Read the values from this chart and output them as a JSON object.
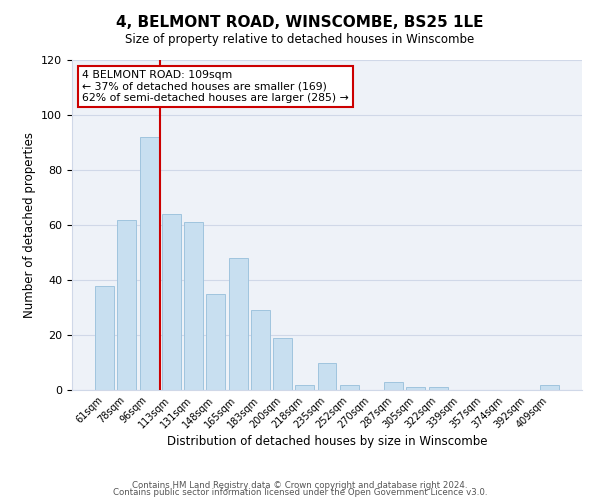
{
  "title": "4, BELMONT ROAD, WINSCOMBE, BS25 1LE",
  "subtitle": "Size of property relative to detached houses in Winscombe",
  "xlabel": "Distribution of detached houses by size in Winscombe",
  "ylabel": "Number of detached properties",
  "bar_labels": [
    "61sqm",
    "78sqm",
    "96sqm",
    "113sqm",
    "131sqm",
    "148sqm",
    "165sqm",
    "183sqm",
    "200sqm",
    "218sqm",
    "235sqm",
    "252sqm",
    "270sqm",
    "287sqm",
    "305sqm",
    "322sqm",
    "339sqm",
    "357sqm",
    "374sqm",
    "392sqm",
    "409sqm"
  ],
  "bar_heights": [
    38,
    62,
    92,
    64,
    61,
    35,
    48,
    29,
    19,
    2,
    10,
    2,
    0,
    3,
    1,
    1,
    0,
    0,
    0,
    0,
    2
  ],
  "bar_color": "#c8dff0",
  "bar_edge_color": "#a0c4de",
  "vline_x_index": 2.5,
  "vline_color": "#cc0000",
  "ylim": [
    0,
    120
  ],
  "yticks": [
    0,
    20,
    40,
    60,
    80,
    100,
    120
  ],
  "annotation_title": "4 BELMONT ROAD: 109sqm",
  "annotation_line1": "← 37% of detached houses are smaller (169)",
  "annotation_line2": "62% of semi-detached houses are larger (285) →",
  "footer1": "Contains HM Land Registry data © Crown copyright and database right 2024.",
  "footer2": "Contains public sector information licensed under the Open Government Licence v3.0.",
  "fig_width": 6.0,
  "fig_height": 5.0,
  "dpi": 100
}
